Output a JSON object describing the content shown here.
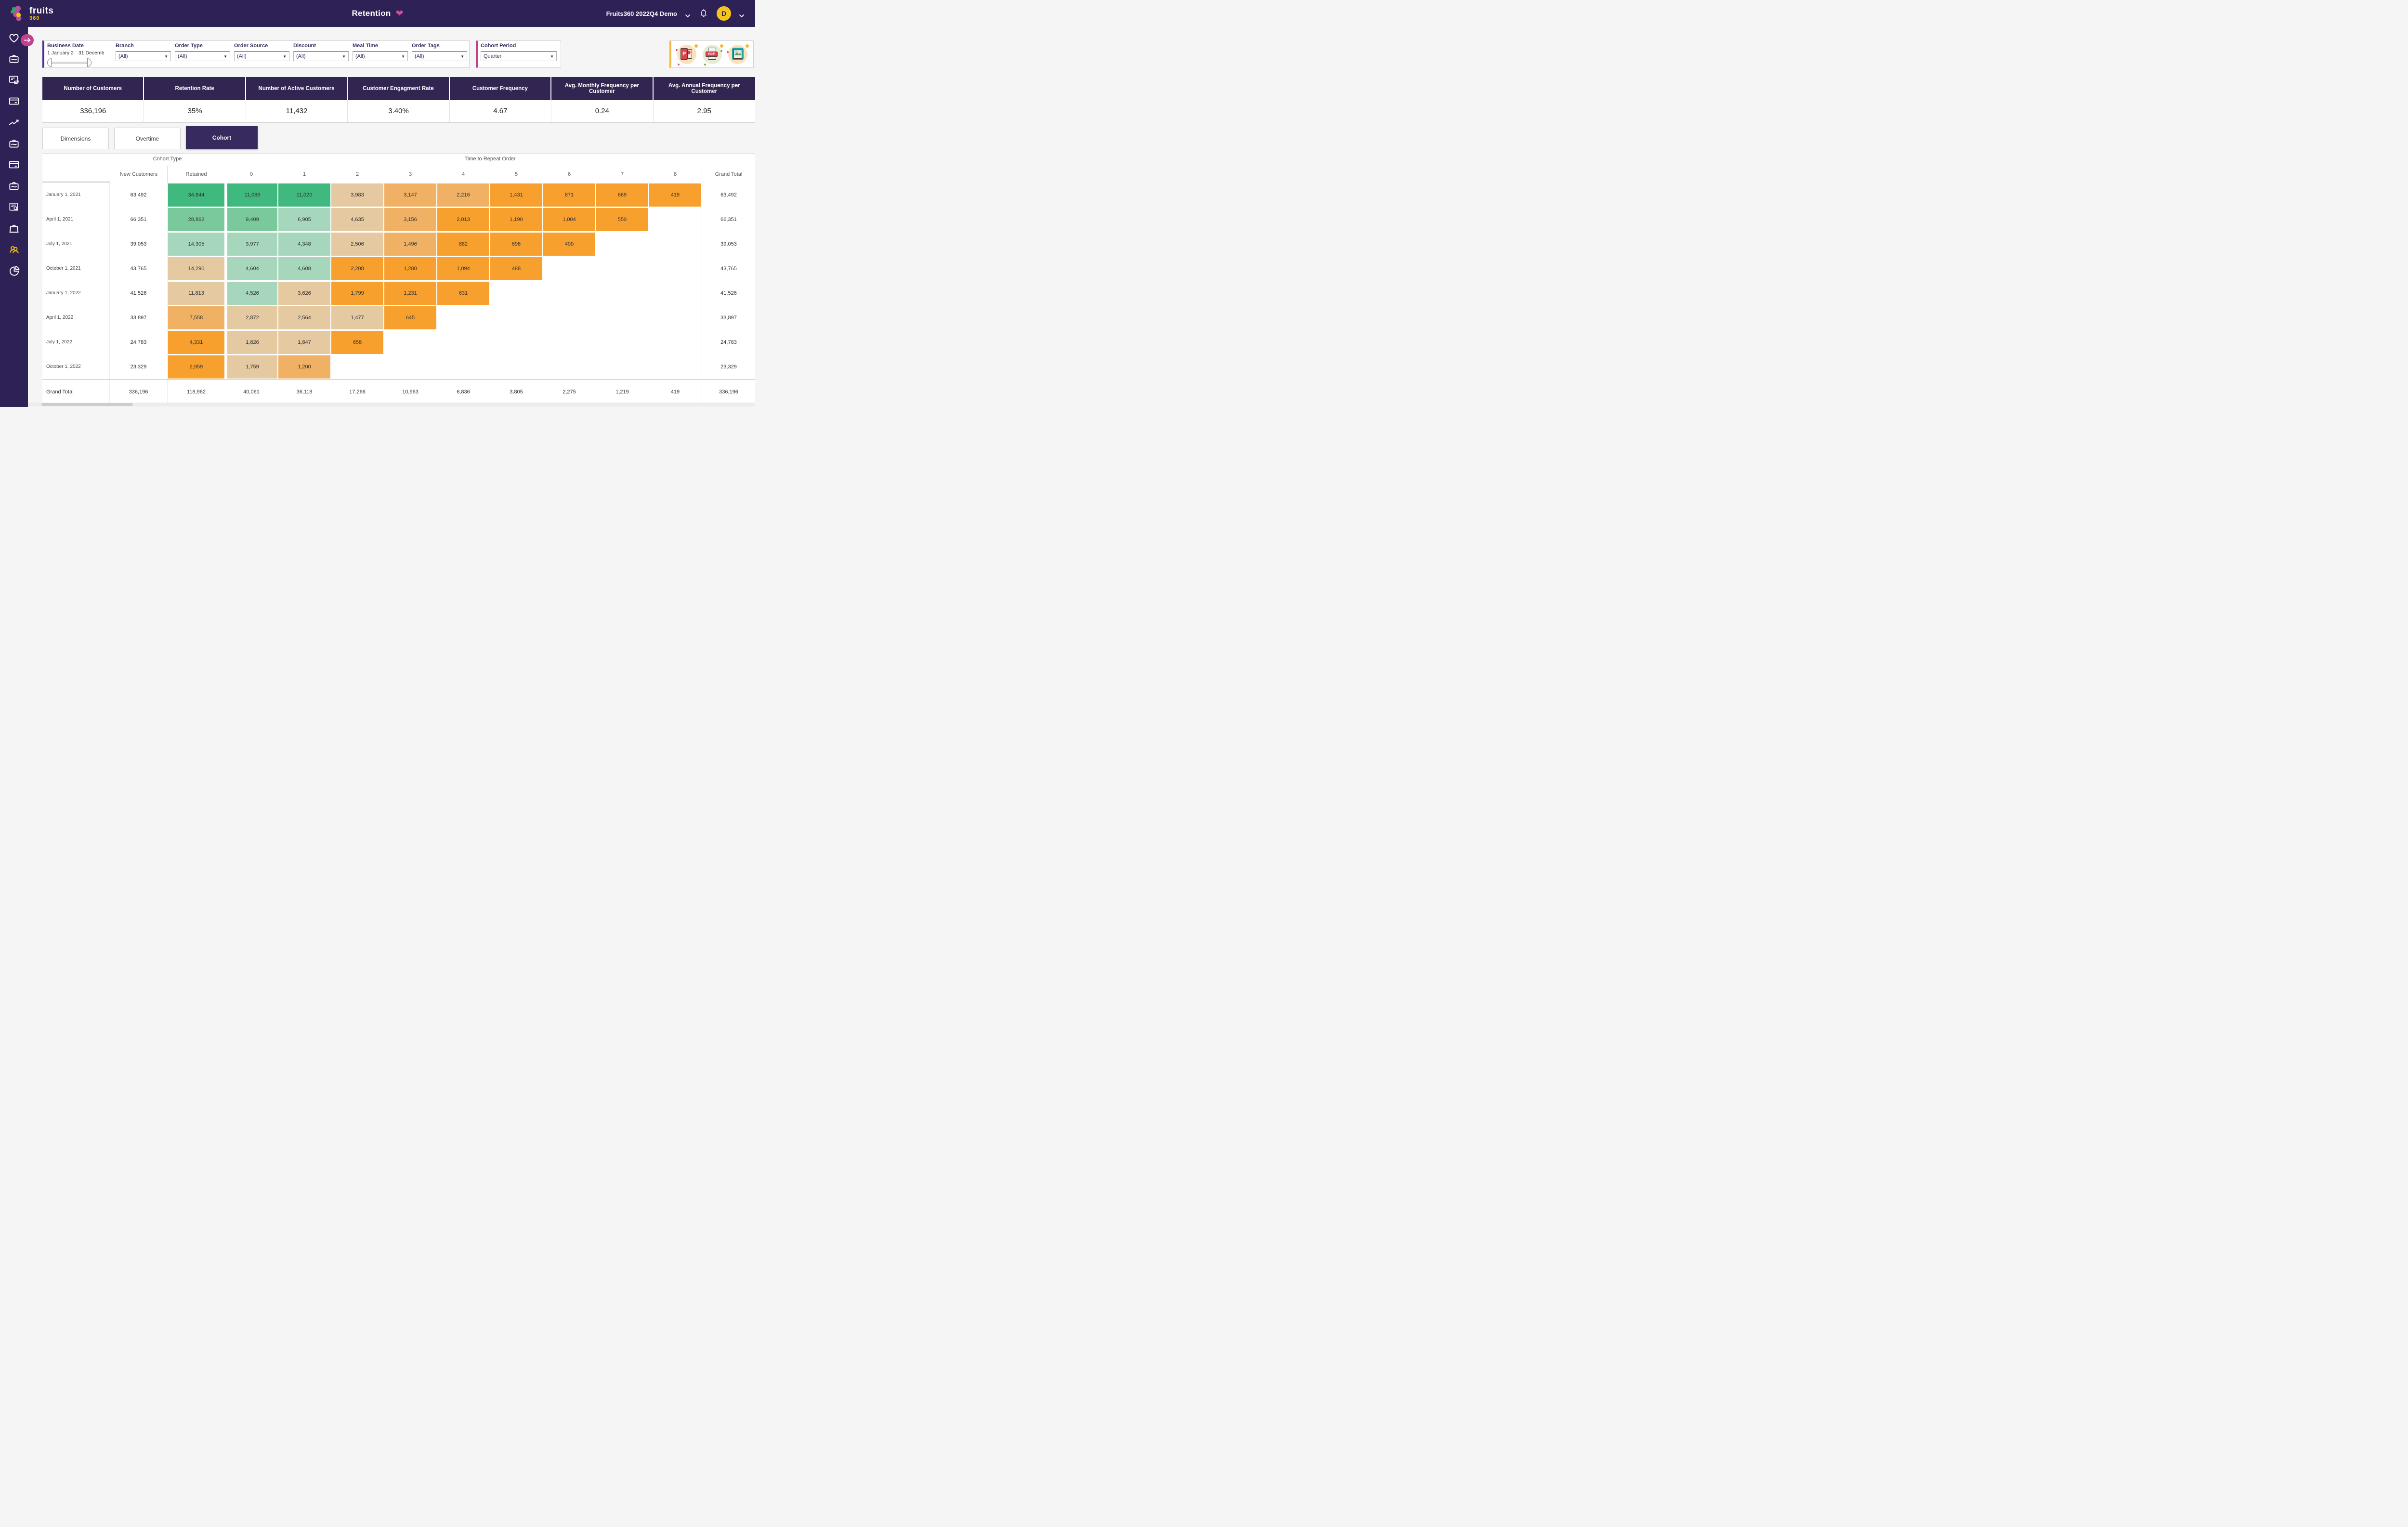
{
  "topbar": {
    "brand_name": "fruits",
    "brand_suffix": "360",
    "title": "Retention",
    "account": "Fruits360 2022Q4 Demo",
    "avatar_initial": "D"
  },
  "sidebar": {
    "items": [
      {
        "name": "favorites",
        "icon": "heart",
        "active": false
      },
      {
        "name": "orders",
        "icon": "bag-swoosh",
        "active": false
      },
      {
        "name": "order-review",
        "icon": "clipboard-cycle",
        "active": false
      },
      {
        "name": "payments",
        "icon": "card",
        "active": false
      },
      {
        "name": "trends",
        "icon": "trend",
        "active": false
      },
      {
        "name": "sales",
        "icon": "bag-swoosh",
        "active": false
      },
      {
        "name": "billing",
        "icon": "card",
        "active": false
      },
      {
        "name": "products",
        "icon": "bag-swoosh",
        "active": false
      },
      {
        "name": "order-lookup",
        "icon": "doc-search",
        "active": false
      },
      {
        "name": "basket",
        "icon": "shopping-bag",
        "active": false
      },
      {
        "name": "customers",
        "icon": "users",
        "active": true
      },
      {
        "name": "segments",
        "icon": "pie",
        "active": false
      }
    ]
  },
  "filters": {
    "business_date": {
      "label": "Business Date",
      "start": "1 January 2",
      "end": "31 Decemb"
    },
    "dropdowns": [
      {
        "label": "Branch",
        "value": "(All)"
      },
      {
        "label": "Order Type",
        "value": "(All)"
      },
      {
        "label": "Order Source",
        "value": "(All)"
      },
      {
        "label": "Discount",
        "value": "(All)"
      },
      {
        "label": "Meal Time",
        "value": "(All)"
      },
      {
        "label": "Order Tags",
        "value": "(All)"
      }
    ],
    "cohort_period": {
      "label": "Cohort Period",
      "value": "Quarter"
    }
  },
  "export": {
    "buttons": [
      {
        "name": "powerpoint",
        "label": "P"
      },
      {
        "name": "pdf",
        "label": "PDF"
      },
      {
        "name": "image",
        "label": ""
      }
    ]
  },
  "kpis": [
    {
      "label": "Number of Customers",
      "value": "336,196"
    },
    {
      "label": "Retention Rate",
      "value": "35%"
    },
    {
      "label": "Number of Active Customers",
      "value": "11,432"
    },
    {
      "label": "Customer Engagment Rate",
      "value": "3.40%"
    },
    {
      "label": "Customer Frequency",
      "value": "4.67"
    },
    {
      "label": "Avg. Monthly Frequency per Customer",
      "value": "0.24"
    },
    {
      "label": "Avg. Annual Frequency per Customer",
      "value": "2.95"
    }
  ],
  "tabs": [
    {
      "label": "Dimensions",
      "active": false
    },
    {
      "label": "Overtime",
      "active": false
    },
    {
      "label": "Cohort",
      "active": true
    }
  ],
  "table": {
    "group_headers": {
      "left": "Cohort Type",
      "right": "Time to Repeat Order"
    },
    "columns": [
      "New Customers",
      "Retained",
      "0",
      "1",
      "2",
      "3",
      "4",
      "5",
      "6",
      "7",
      "8",
      "Grand Total"
    ],
    "palette": {
      "green1": "#3fb97d",
      "green2": "#79c99d",
      "green3": "#a6d7bc",
      "tan": "#e5c9a0",
      "orange1": "#f1b164",
      "orange2": "#f7a02d"
    },
    "rows": [
      {
        "label": "January 1, 2021",
        "new_customers": "63,492",
        "retained": {
          "v": "34,844",
          "c": "green1"
        },
        "cells": [
          {
            "v": "11,088",
            "c": "green1"
          },
          {
            "v": "11,020",
            "c": "green1"
          },
          {
            "v": "3,983",
            "c": "tan"
          },
          {
            "v": "3,147",
            "c": "orange1"
          },
          {
            "v": "2,216",
            "c": "orange1"
          },
          {
            "v": "1,431",
            "c": "orange2"
          },
          {
            "v": "871",
            "c": "orange2"
          },
          {
            "v": "669",
            "c": "orange2"
          },
          {
            "v": "419",
            "c": "orange2"
          }
        ],
        "grand_total": "63,492"
      },
      {
        "label": "April 1, 2021",
        "new_customers": "66,351",
        "retained": {
          "v": "28,862",
          "c": "green2"
        },
        "cells": [
          {
            "v": "9,409",
            "c": "green2"
          },
          {
            "v": "6,905",
            "c": "green3"
          },
          {
            "v": "4,635",
            "c": "tan"
          },
          {
            "v": "3,156",
            "c": "orange1"
          },
          {
            "v": "2,013",
            "c": "orange2"
          },
          {
            "v": "1,190",
            "c": "orange2"
          },
          {
            "v": "1,004",
            "c": "orange2"
          },
          {
            "v": "550",
            "c": "orange2"
          },
          null
        ],
        "grand_total": "66,351"
      },
      {
        "label": "July 1, 2021",
        "new_customers": "39,053",
        "retained": {
          "v": "14,305",
          "c": "green3"
        },
        "cells": [
          {
            "v": "3,977",
            "c": "green3"
          },
          {
            "v": "4,348",
            "c": "green3"
          },
          {
            "v": "2,506",
            "c": "tan"
          },
          {
            "v": "1,496",
            "c": "orange1"
          },
          {
            "v": "882",
            "c": "orange2"
          },
          {
            "v": "696",
            "c": "orange2"
          },
          {
            "v": "400",
            "c": "orange2"
          },
          null,
          null
        ],
        "grand_total": "39,053"
      },
      {
        "label": "October 1, 2021",
        "new_customers": "43,765",
        "retained": {
          "v": "14,290",
          "c": "tan"
        },
        "cells": [
          {
            "v": "4,604",
            "c": "green3"
          },
          {
            "v": "4,608",
            "c": "green3"
          },
          {
            "v": "2,208",
            "c": "orange2"
          },
          {
            "v": "1,288",
            "c": "orange2"
          },
          {
            "v": "1,094",
            "c": "orange2"
          },
          {
            "v": "488",
            "c": "orange2"
          },
          null,
          null,
          null
        ],
        "grand_total": "43,765"
      },
      {
        "label": "January 1, 2022",
        "new_customers": "41,526",
        "retained": {
          "v": "11,813",
          "c": "tan"
        },
        "cells": [
          {
            "v": "4,526",
            "c": "green3"
          },
          {
            "v": "3,626",
            "c": "tan"
          },
          {
            "v": "1,799",
            "c": "orange2"
          },
          {
            "v": "1,231",
            "c": "orange2"
          },
          {
            "v": "631",
            "c": "orange2"
          },
          null,
          null,
          null,
          null
        ],
        "grand_total": "41,526"
      },
      {
        "label": "April 1, 2022",
        "new_customers": "33,897",
        "retained": {
          "v": "7,558",
          "c": "orange1"
        },
        "cells": [
          {
            "v": "2,872",
            "c": "tan"
          },
          {
            "v": "2,564",
            "c": "tan"
          },
          {
            "v": "1,477",
            "c": "tan"
          },
          {
            "v": "645",
            "c": "orange2"
          },
          null,
          null,
          null,
          null,
          null
        ],
        "grand_total": "33,897"
      },
      {
        "label": "July 1, 2022",
        "new_customers": "24,783",
        "retained": {
          "v": "4,331",
          "c": "orange2"
        },
        "cells": [
          {
            "v": "1,826",
            "c": "tan"
          },
          {
            "v": "1,847",
            "c": "tan"
          },
          {
            "v": "658",
            "c": "orange2"
          },
          null,
          null,
          null,
          null,
          null,
          null
        ],
        "grand_total": "24,783"
      },
      {
        "label": "October 1, 2022",
        "new_customers": "23,329",
        "retained": {
          "v": "2,959",
          "c": "orange2"
        },
        "cells": [
          {
            "v": "1,759",
            "c": "tan"
          },
          {
            "v": "1,200",
            "c": "orange1"
          },
          null,
          null,
          null,
          null,
          null,
          null,
          null
        ],
        "grand_total": "23,329"
      }
    ],
    "grand_total_row": {
      "label": "Grand Total",
      "new_customers": "336,196",
      "retained": "118,962",
      "cells": [
        "40,061",
        "36,118",
        "17,266",
        "10,963",
        "6,836",
        "3,805",
        "2,275",
        "1,219",
        "419"
      ],
      "grand_total": "336,196"
    }
  }
}
